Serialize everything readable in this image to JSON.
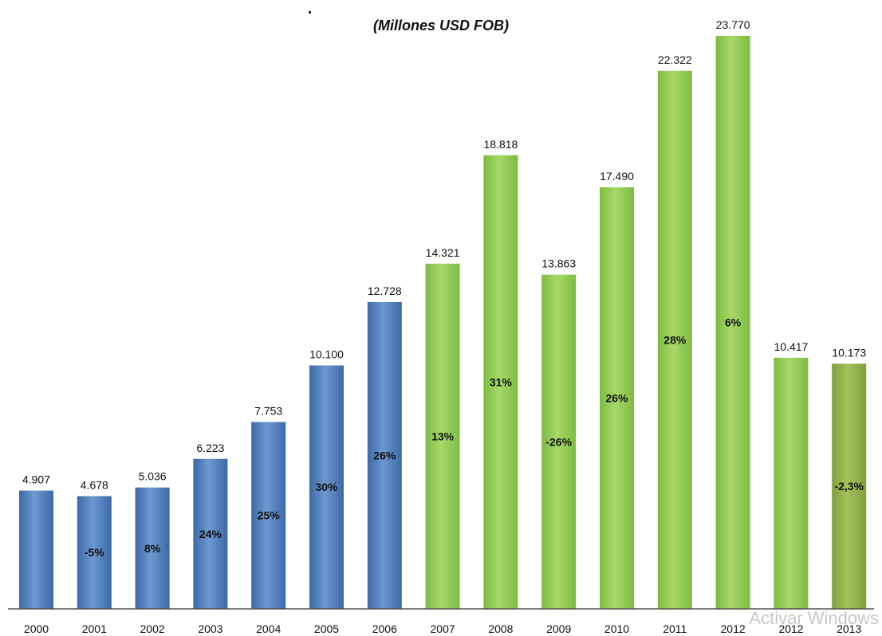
{
  "chart_data": {
    "type": "bar",
    "subtitle": "(Millones USD FOB)",
    "categories": [
      "2000",
      "2001",
      "2002",
      "2003",
      "2004",
      "2005",
      "2006",
      "2007",
      "2008",
      "2009",
      "2010",
      "2011",
      "2012",
      "2012",
      "2013"
    ],
    "values": [
      4907,
      4678,
      5036,
      6223,
      7753,
      10100,
      12728,
      14321,
      18818,
      13863,
      17490,
      22322,
      23770,
      10417,
      10173
    ],
    "value_labels": [
      "4.907",
      "4.678",
      "5.036",
      "6.223",
      "7.753",
      "10.100",
      "12.728",
      "14.321",
      "18.818",
      "13.863",
      "17.490",
      "22.322",
      "23.770",
      "10.417",
      "10.173"
    ],
    "growth_labels": [
      "",
      "-5%",
      "8%",
      "24%",
      "25%",
      "30%",
      "26%",
      "13%",
      "31%",
      "-26%",
      "26%",
      "28%",
      "6%",
      "",
      "-2,3%"
    ],
    "bar_groups": [
      "blue",
      "blue",
      "blue",
      "blue",
      "blue",
      "blue",
      "blue",
      "green",
      "green",
      "green",
      "green",
      "green",
      "green",
      "green",
      "olive"
    ],
    "colors": {
      "blue": "#3a6aa8",
      "blue_light": "#6e98cf",
      "green": "#7cbc3f",
      "green_light": "#a8d86a",
      "olive": "#7f9f3c",
      "olive_light": "#a6c25c",
      "axis": "#555555"
    },
    "ylim": [
      0,
      25000
    ],
    "grid": false,
    "legend": "none"
  },
  "watermark": "Activar Windows"
}
